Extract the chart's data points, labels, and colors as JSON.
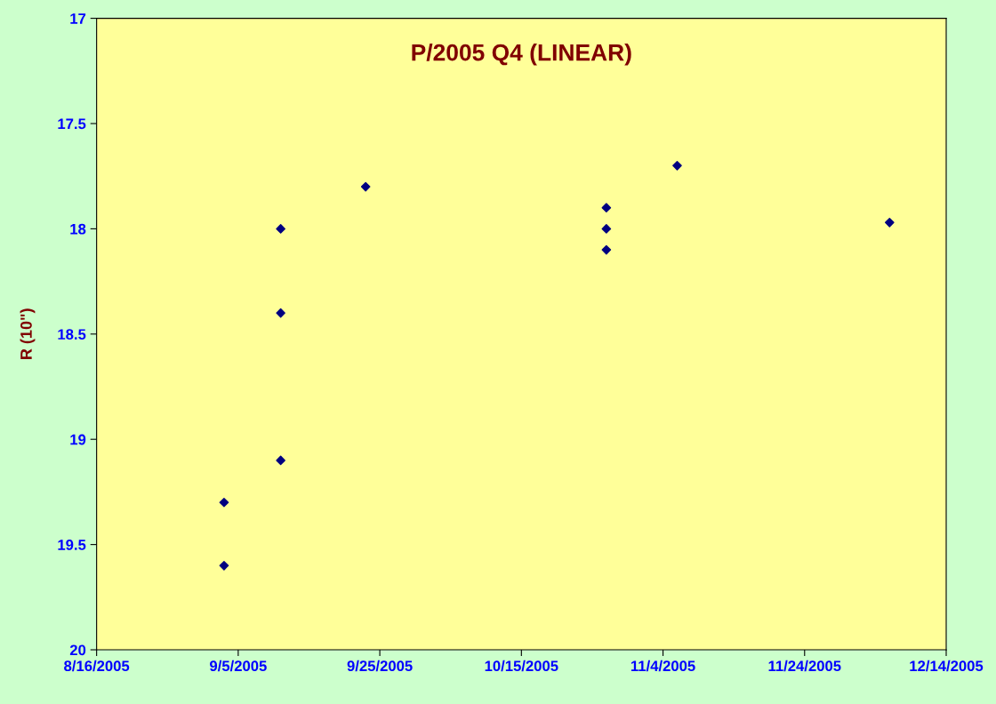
{
  "chart_data": {
    "type": "scatter",
    "title": "P/2005 Q4 (LINEAR)",
    "ylabel": "R (10\")",
    "x": [
      "2005-09-03",
      "2005-09-03",
      "2005-09-11",
      "2005-09-11",
      "2005-09-11",
      "2005-09-23",
      "2005-10-27",
      "2005-10-27",
      "2005-10-27",
      "2005-11-06",
      "2005-12-06"
    ],
    "series": [
      {
        "color": "#000080",
        "values": [
          19.3,
          19.6,
          18.0,
          18.4,
          19.1,
          17.8,
          17.9,
          18.0,
          18.1,
          17.7,
          17.97
        ]
      }
    ],
    "xlim": [
      "2005-08-16",
      "2005-12-14"
    ],
    "xticks": [
      {
        "value": "2005-08-16",
        "label": "8/16/2005"
      },
      {
        "value": "2005-09-05",
        "label": "9/5/2005"
      },
      {
        "value": "2005-09-25",
        "label": "9/25/2005"
      },
      {
        "value": "2005-10-15",
        "label": "10/15/2005"
      },
      {
        "value": "2005-11-04",
        "label": "11/4/2005"
      },
      {
        "value": "2005-11-24",
        "label": "11/24/2005"
      },
      {
        "value": "2005-12-14",
        "label": "12/14/2005"
      }
    ],
    "ylim": [
      20,
      17
    ],
    "yticks": [
      17,
      17.5,
      18,
      18.5,
      19,
      19.5,
      20
    ],
    "marker": "diamond",
    "grid": false,
    "legend": false
  }
}
